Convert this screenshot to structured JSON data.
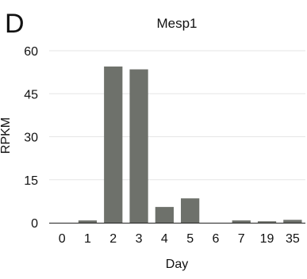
{
  "panel_label": "D",
  "colors": {
    "bar": "#6e716b",
    "gridline": "#e6e6e6",
    "axis": "#222222"
  },
  "chart_data": {
    "type": "bar",
    "title": "Mesp1",
    "xlabel": "Day",
    "ylabel": "RPKM",
    "categories": [
      "0",
      "1",
      "2",
      "3",
      "4",
      "5",
      "6",
      "7",
      "19",
      "35"
    ],
    "values": [
      0,
      0.8,
      54.5,
      53.5,
      5.5,
      8.5,
      0,
      0.8,
      0.5,
      1.0
    ],
    "ylim": [
      0,
      60
    ],
    "yticks": [
      0,
      15,
      30,
      45,
      60
    ],
    "grid": true,
    "legend": "none"
  }
}
